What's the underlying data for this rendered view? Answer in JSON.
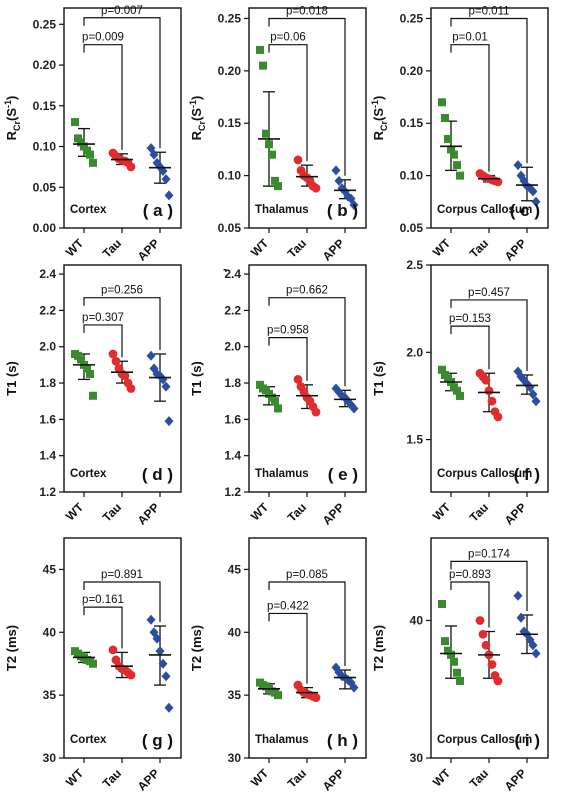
{
  "chart_data": [
    {
      "type": "scatter",
      "panel_label": "( a )",
      "region": "Cortex",
      "ylabel": "R",
      "ylabel_sub": "Cr",
      "ylabel_unit": "(S",
      "ylabel_sup": "-1",
      "ylabel_end": ")",
      "ylim": [
        0,
        0.27
      ],
      "yticks": [
        "0.00",
        "0.05",
        "0.10",
        "0.15",
        "0.20",
        "0.25"
      ],
      "categories": [
        "WT",
        "Tau",
        "APP"
      ],
      "series": [
        {
          "values": [
            0.13,
            0.11,
            0.105,
            0.1,
            0.095,
            0.09,
            0.08
          ],
          "mean": 0.103,
          "sd": [
            0.088,
            0.122
          ],
          "color": "#3a8a2e",
          "marker": "square"
        },
        {
          "values": [
            0.092,
            0.088,
            0.085,
            0.083,
            0.082,
            0.08,
            0.075
          ],
          "mean": 0.084,
          "sd": [
            0.078,
            0.091
          ],
          "color": "#e02c2c",
          "marker": "circle"
        },
        {
          "values": [
            0.098,
            0.09,
            0.08,
            0.075,
            0.07,
            0.06,
            0.04
          ],
          "mean": 0.074,
          "sd": [
            0.055,
            0.093
          ],
          "color": "#2c4ea0",
          "marker": "diamond"
        }
      ],
      "brackets": [
        {
          "label": "p=0.009",
          "from": 0,
          "to": 1,
          "y": 0.225
        },
        {
          "label": "p=0.007",
          "from": 0,
          "to": 2,
          "y": 0.258
        }
      ]
    },
    {
      "type": "scatter",
      "panel_label": "( b )",
      "region": "Thalamus",
      "ylabel": "R",
      "ylabel_sub": "Cr",
      "ylabel_unit": "(S",
      "ylabel_sup": "-1",
      "ylabel_end": ")",
      "ylim": [
        0.05,
        0.26
      ],
      "yticks": [
        "0.05",
        "0.10",
        "0.15",
        "0.20",
        "0.25"
      ],
      "categories": [
        "WT",
        "Tau",
        "APP"
      ],
      "series": [
        {
          "values": [
            0.22,
            0.205,
            0.14,
            0.13,
            0.12,
            0.095,
            0.09
          ],
          "mean": 0.135,
          "sd": [
            0.09,
            0.18
          ],
          "color": "#3a8a2e",
          "marker": "square"
        },
        {
          "values": [
            0.115,
            0.105,
            0.1,
            0.098,
            0.095,
            0.09,
            0.088
          ],
          "mean": 0.099,
          "sd": [
            0.09,
            0.11
          ],
          "color": "#e02c2c",
          "marker": "circle"
        },
        {
          "values": [
            0.105,
            0.095,
            0.088,
            0.085,
            0.08,
            0.078,
            0.072
          ],
          "mean": 0.086,
          "sd": [
            0.078,
            0.096
          ],
          "color": "#2c4ea0",
          "marker": "diamond"
        }
      ],
      "brackets": [
        {
          "label": "p=0.06",
          "from": 0,
          "to": 1,
          "y": 0.225
        },
        {
          "label": "p=0.018",
          "from": 0,
          "to": 2,
          "y": 0.25
        }
      ]
    },
    {
      "type": "scatter",
      "panel_label": "( c )",
      "region": "Corpus Callosum",
      "ylabel": "R",
      "ylabel_sub": "Cr",
      "ylabel_unit": "(S",
      "ylabel_sup": "-1",
      "ylabel_end": ")",
      "ylim": [
        0.05,
        0.26
      ],
      "yticks": [
        "0.05",
        "0.10",
        "0.15",
        "0.20",
        "0.25"
      ],
      "categories": [
        "WT",
        "Tau",
        "APP"
      ],
      "series": [
        {
          "values": [
            0.17,
            0.155,
            0.135,
            0.125,
            0.12,
            0.11,
            0.1
          ],
          "mean": 0.128,
          "sd": [
            0.105,
            0.152
          ],
          "color": "#3a8a2e",
          "marker": "square"
        },
        {
          "values": [
            0.102,
            0.1,
            0.098,
            0.097,
            0.096,
            0.095,
            0.094
          ],
          "mean": 0.097,
          "sd": [
            0.094,
            0.1
          ],
          "color": "#e02c2c",
          "marker": "circle"
        },
        {
          "values": [
            0.11,
            0.1,
            0.095,
            0.09,
            0.088,
            0.085,
            0.075
          ],
          "mean": 0.091,
          "sd": [
            0.076,
            0.108
          ],
          "color": "#2c4ea0",
          "marker": "diamond"
        }
      ],
      "brackets": [
        {
          "label": "p=0.01",
          "from": 0,
          "to": 1,
          "y": 0.225
        },
        {
          "label": "p=0.011",
          "from": 0,
          "to": 2,
          "y": 0.25
        }
      ]
    },
    {
      "type": "scatter",
      "panel_label": "( d )",
      "region": "Cortex",
      "ylabel": "T1 (s)",
      "ylim": [
        1.2,
        2.45
      ],
      "yticks": [
        "1.2",
        "1.4",
        "1.6",
        "1.8",
        "2.0",
        "2.2",
        "2.4"
      ],
      "categories": [
        "WT",
        "Tau",
        "APP"
      ],
      "series": [
        {
          "values": [
            1.96,
            1.95,
            1.93,
            1.9,
            1.88,
            1.85,
            1.73
          ],
          "mean": 1.9,
          "sd": [
            1.82,
            1.96
          ],
          "color": "#3a8a2e",
          "marker": "square"
        },
        {
          "values": [
            1.96,
            1.92,
            1.88,
            1.85,
            1.84,
            1.8,
            1.77
          ],
          "mean": 1.86,
          "sd": [
            1.8,
            1.92
          ],
          "color": "#e02c2c",
          "marker": "circle"
        },
        {
          "values": [
            1.95,
            1.88,
            1.85,
            1.84,
            1.82,
            1.78,
            1.59
          ],
          "mean": 1.83,
          "sd": [
            1.7,
            1.96
          ],
          "color": "#2c4ea0",
          "marker": "diamond"
        }
      ],
      "brackets": [
        {
          "label": "p=0.307",
          "from": 0,
          "to": 1,
          "y": 2.12
        },
        {
          "label": "p=0.256",
          "from": 0,
          "to": 2,
          "y": 2.27
        }
      ]
    },
    {
      "type": "scatter",
      "panel_label": "( e )",
      "region": "Thalamus",
      "ylabel": "T1 (s)",
      "ylim": [
        1.2,
        2.45
      ],
      "yticks": [
        "1.2",
        "1.4",
        "1.6",
        "1.8",
        "2.0",
        "2.2",
        "2.4"
      ],
      "top_mark": "-",
      "categories": [
        "WT",
        "Tau",
        "APP"
      ],
      "series": [
        {
          "values": [
            1.79,
            1.77,
            1.76,
            1.74,
            1.72,
            1.7,
            1.66
          ],
          "mean": 1.73,
          "sd": [
            1.68,
            1.78
          ],
          "color": "#3a8a2e",
          "marker": "square"
        },
        {
          "values": [
            1.82,
            1.78,
            1.75,
            1.72,
            1.7,
            1.67,
            1.64
          ],
          "mean": 1.73,
          "sd": [
            1.66,
            1.79
          ],
          "color": "#e02c2c",
          "marker": "circle"
        },
        {
          "values": [
            1.77,
            1.75,
            1.73,
            1.72,
            1.7,
            1.68,
            1.66
          ],
          "mean": 1.71,
          "sd": [
            1.67,
            1.76
          ],
          "color": "#2c4ea0",
          "marker": "diamond"
        }
      ],
      "brackets": [
        {
          "label": "p=0.958",
          "from": 0,
          "to": 1,
          "y": 2.05
        },
        {
          "label": "p=0.662",
          "from": 0,
          "to": 2,
          "y": 2.27
        }
      ]
    },
    {
      "type": "scatter",
      "panel_label": "( f )",
      "region": "Corpus Callosum",
      "ylabel": "T1 (s)",
      "ylim": [
        1.2,
        2.5
      ],
      "yticks": [
        "1.5",
        "2.0",
        "2.5"
      ],
      "categories": [
        "WT",
        "Tau",
        "APP"
      ],
      "series": [
        {
          "values": [
            1.9,
            1.87,
            1.85,
            1.83,
            1.8,
            1.78,
            1.75
          ],
          "mean": 1.83,
          "sd": [
            1.78,
            1.88
          ],
          "color": "#3a8a2e",
          "marker": "square"
        },
        {
          "values": [
            1.88,
            1.86,
            1.84,
            1.78,
            1.72,
            1.66,
            1.63
          ],
          "mean": 1.77,
          "sd": [
            1.66,
            1.88
          ],
          "color": "#e02c2c",
          "marker": "circle"
        },
        {
          "values": [
            1.89,
            1.86,
            1.84,
            1.82,
            1.8,
            1.76,
            1.72
          ],
          "mean": 1.81,
          "sd": [
            1.76,
            1.87
          ],
          "color": "#2c4ea0",
          "marker": "diamond"
        }
      ],
      "brackets": [
        {
          "label": "p=0.153",
          "from": 0,
          "to": 1,
          "y": 2.15
        },
        {
          "label": "p=0.457",
          "from": 0,
          "to": 2,
          "y": 2.3
        }
      ]
    },
    {
      "type": "scatter",
      "panel_label": "( g )",
      "region": "Cortex",
      "ylabel": "T2 (ms)",
      "ylim": [
        30,
        47.5
      ],
      "yticks": [
        "30",
        "35",
        "40",
        "45"
      ],
      "categories": [
        "WT",
        "Tau",
        "APP"
      ],
      "series": [
        {
          "values": [
            38.5,
            38.3,
            38.1,
            38.0,
            37.8,
            37.7,
            37.5
          ],
          "mean": 38.0,
          "sd": [
            37.6,
            38.4
          ],
          "color": "#3a8a2e",
          "marker": "square"
        },
        {
          "values": [
            38.6,
            37.8,
            37.3,
            37.1,
            37.0,
            36.8,
            36.6
          ],
          "mean": 37.3,
          "sd": [
            36.4,
            38.4
          ],
          "color": "#e02c2c",
          "marker": "circle"
        },
        {
          "values": [
            41.0,
            40.0,
            39.5,
            38.5,
            37.5,
            36.5,
            34.0
          ],
          "mean": 38.2,
          "sd": [
            35.8,
            40.5
          ],
          "color": "#2c4ea0",
          "marker": "diamond"
        }
      ],
      "brackets": [
        {
          "label": "p=0.161",
          "from": 0,
          "to": 1,
          "y": 42.0
        },
        {
          "label": "p=0.891",
          "from": 0,
          "to": 2,
          "y": 44.0
        }
      ]
    },
    {
      "type": "scatter",
      "panel_label": "( h )",
      "region": "Thalamus",
      "ylabel": "T2 (ms)",
      "ylim": [
        30,
        47.5
      ],
      "yticks": [
        "30",
        "35",
        "40",
        "45"
      ],
      "categories": [
        "WT",
        "Tau",
        "APP"
      ],
      "series": [
        {
          "values": [
            36.0,
            35.8,
            35.7,
            35.5,
            35.3,
            35.2,
            35.0
          ],
          "mean": 35.5,
          "sd": [
            35.1,
            35.9
          ],
          "color": "#3a8a2e",
          "marker": "square"
        },
        {
          "values": [
            35.8,
            35.4,
            35.2,
            35.1,
            35.0,
            34.9,
            34.8
          ],
          "mean": 35.2,
          "sd": [
            34.8,
            35.6
          ],
          "color": "#e02c2c",
          "marker": "circle"
        },
        {
          "values": [
            37.2,
            36.8,
            36.5,
            36.4,
            36.2,
            36.0,
            35.6
          ],
          "mean": 36.4,
          "sd": [
            35.5,
            37.0
          ],
          "color": "#2c4ea0",
          "marker": "diamond"
        }
      ],
      "brackets": [
        {
          "label": "p=0.422",
          "from": 0,
          "to": 1,
          "y": 41.5
        },
        {
          "label": "p=0.085",
          "from": 0,
          "to": 2,
          "y": 44.0
        }
      ]
    },
    {
      "type": "scatter",
      "panel_label": "( i )",
      "region": "Corpus Callosum",
      "ylabel": "T2 (ms)",
      "ylim": [
        30,
        46
      ],
      "yticks": [
        "30",
        "40"
      ],
      "categories": [
        "WT",
        "Tau",
        "APP"
      ],
      "series": [
        {
          "values": [
            41.2,
            38.5,
            37.8,
            37.5,
            37.0,
            36.2,
            35.6
          ],
          "mean": 37.6,
          "sd": [
            35.8,
            39.6
          ],
          "color": "#3a8a2e",
          "marker": "square"
        },
        {
          "values": [
            40.0,
            39.0,
            38.2,
            37.5,
            36.8,
            36.0,
            35.6
          ],
          "mean": 37.5,
          "sd": [
            35.8,
            39.2
          ],
          "color": "#e02c2c",
          "marker": "circle"
        },
        {
          "values": [
            41.8,
            40.2,
            39.2,
            39.0,
            38.6,
            38.2,
            37.6
          ],
          "mean": 39.0,
          "sd": [
            37.6,
            40.4
          ],
          "color": "#2c4ea0",
          "marker": "diamond"
        }
      ],
      "brackets": [
        {
          "label": "p=0.893",
          "from": 0,
          "to": 1,
          "y": 42.8
        },
        {
          "label": "p=0.174",
          "from": 0,
          "to": 2,
          "y": 44.3
        }
      ]
    }
  ]
}
